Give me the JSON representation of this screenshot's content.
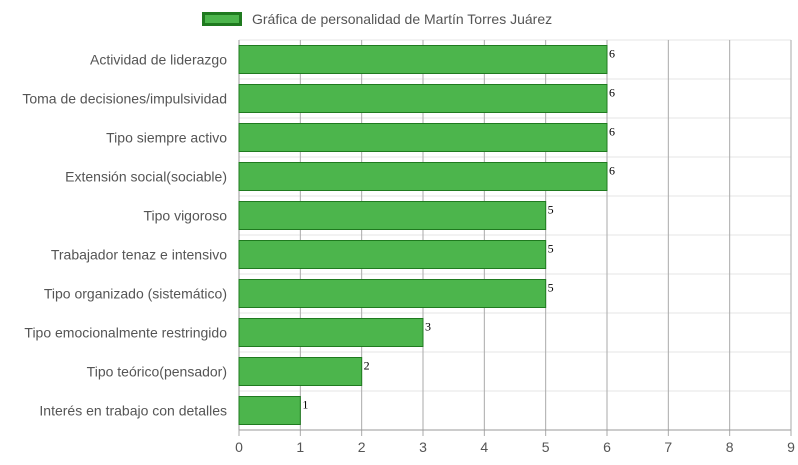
{
  "chart_data": {
    "type": "bar",
    "orientation": "horizontal",
    "legend": "top",
    "grid": true,
    "xlim": [
      0,
      9
    ],
    "ticks": [
      0,
      1,
      2,
      3,
      4,
      5,
      6,
      7,
      8,
      9
    ],
    "categories": [
      "Actividad de liderazgo",
      "Toma de decisiones/impulsividad",
      "Tipo siempre activo",
      "Extensión social(sociable)",
      "Tipo vigoroso",
      "Trabajador tenaz e intensivo",
      "Tipo organizado (sistemático)",
      "Tipo emocionalmente restringido",
      "Tipo teórico(pensador)",
      "Interés en trabajo con detalles"
    ],
    "series": [
      {
        "name": "Gráfica de personalidad de Martín Torres Juárez",
        "values": [
          6,
          6,
          6,
          6,
          5,
          5,
          5,
          3,
          2,
          1
        ],
        "color": "#4cb54c",
        "border_color": "#1f7a1f"
      }
    ]
  }
}
